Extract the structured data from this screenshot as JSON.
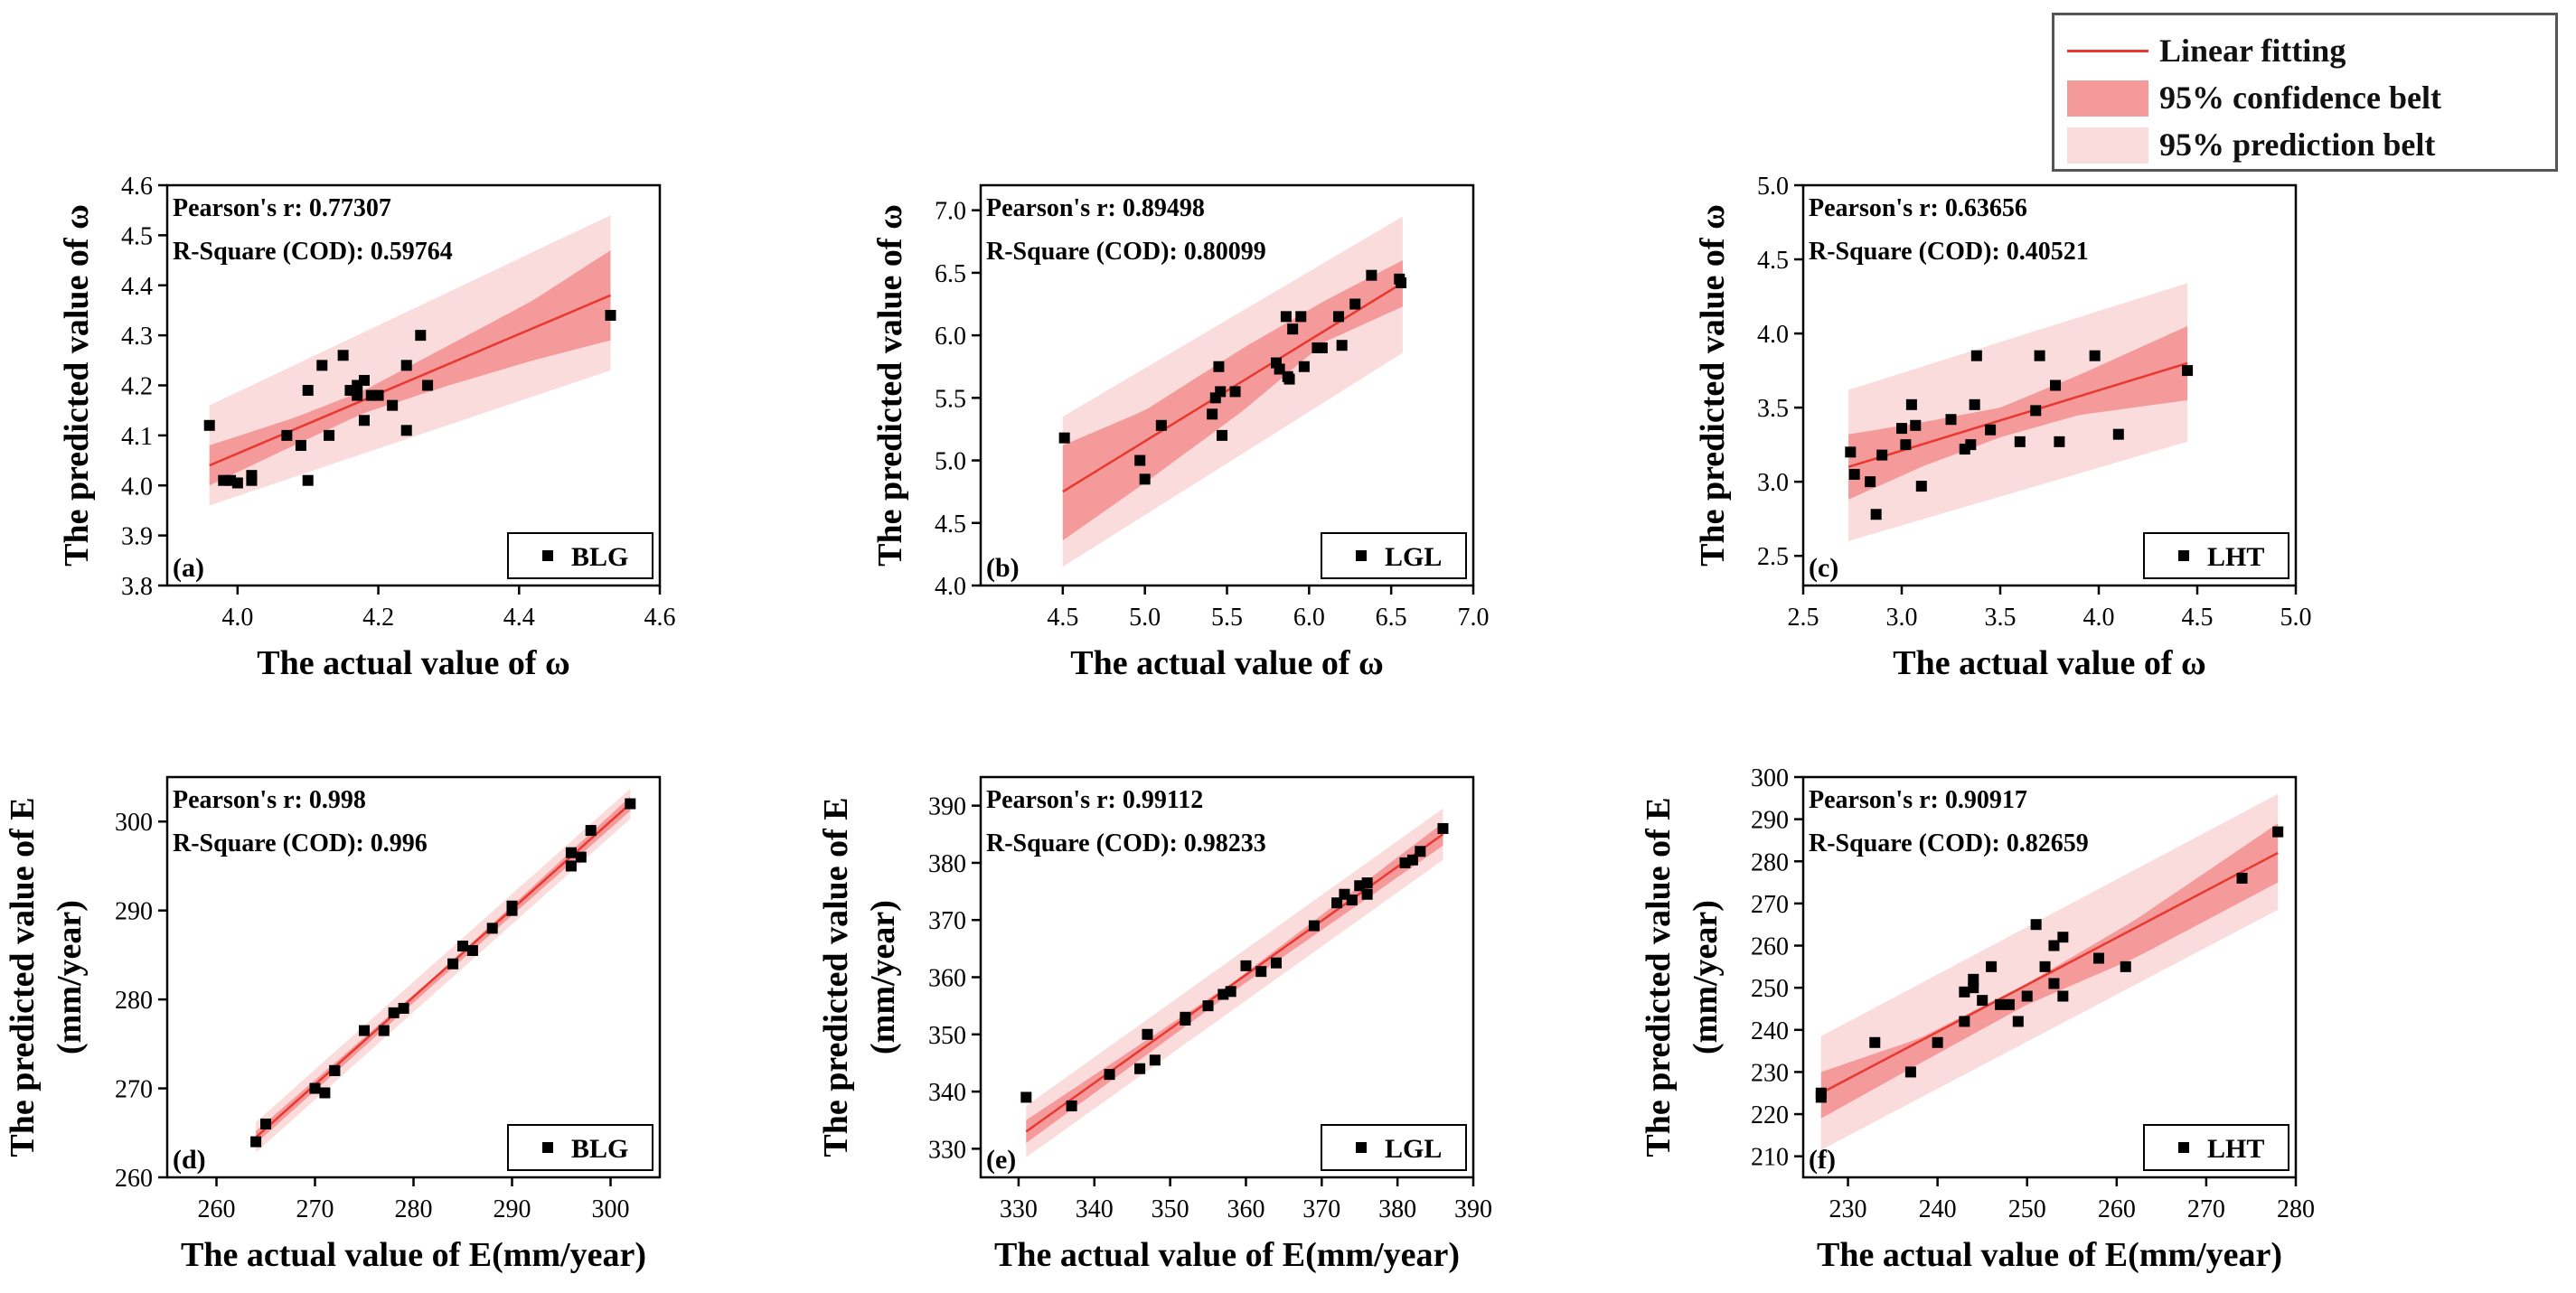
{
  "legend": {
    "items": [
      {
        "label": "Linear fitting",
        "kind": "line",
        "color": "#e8382f"
      },
      {
        "label": "95% confidence belt",
        "kind": "band",
        "color": "#f59a9a"
      },
      {
        "label": "95% prediction belt",
        "kind": "band",
        "color": "#fbdcdc"
      }
    ]
  },
  "colors": {
    "fit": "#e8382f",
    "conf": "#f59a9a",
    "pred": "#fbdcdc",
    "point": "#000000"
  },
  "chart_data": [
    {
      "type": "scatter",
      "panel": "(a)",
      "series_label": "BLG",
      "xlabel": "The actual value of ω",
      "ylabel": [
        "The predicted value of ω"
      ],
      "xlim": [
        3.9,
        4.6
      ],
      "ylim": [
        3.8,
        4.6
      ],
      "xticks": [
        "4.0",
        "4.2",
        "4.4",
        "4.6"
      ],
      "xtick_values": [
        4.0,
        4.2,
        4.4,
        4.6
      ],
      "yticks": [
        "3.8",
        "3.9",
        "4.0",
        "4.1",
        "4.2",
        "4.3",
        "4.4",
        "4.5",
        "4.6"
      ],
      "ytick_values": [
        3.8,
        3.9,
        4.0,
        4.1,
        4.2,
        4.3,
        4.4,
        4.5,
        4.6
      ],
      "stats": [
        "Pearson's r: 0.77307",
        "R-Square (COD): 0.59764"
      ],
      "fit": {
        "x": [
          3.96,
          4.53
        ],
        "y": [
          4.04,
          4.38
        ]
      },
      "conf_band": {
        "x": [
          3.96,
          4.08,
          4.18,
          4.3,
          4.42,
          4.53
        ],
        "upper": [
          4.08,
          4.135,
          4.19,
          4.28,
          4.37,
          4.47
        ],
        "lower": [
          4.0,
          4.08,
          4.145,
          4.2,
          4.25,
          4.29
        ]
      },
      "pred_band": {
        "x": [
          3.96,
          4.53
        ],
        "upper": [
          4.16,
          4.54
        ],
        "lower": [
          3.96,
          4.23
        ]
      },
      "points": [
        [
          3.96,
          4.12
        ],
        [
          3.98,
          4.01
        ],
        [
          3.99,
          4.01
        ],
        [
          4.0,
          4.005
        ],
        [
          4.02,
          4.01
        ],
        [
          4.02,
          4.02
        ],
        [
          4.07,
          4.1
        ],
        [
          4.09,
          4.08
        ],
        [
          4.1,
          4.19
        ],
        [
          4.1,
          4.01
        ],
        [
          4.12,
          4.24
        ],
        [
          4.13,
          4.1
        ],
        [
          4.15,
          4.26
        ],
        [
          4.16,
          4.19
        ],
        [
          4.17,
          4.2
        ],
        [
          4.17,
          4.18
        ],
        [
          4.18,
          4.21
        ],
        [
          4.18,
          4.13
        ],
        [
          4.19,
          4.18
        ],
        [
          4.2,
          4.18
        ],
        [
          4.22,
          4.16
        ],
        [
          4.24,
          4.24
        ],
        [
          4.24,
          4.11
        ],
        [
          4.26,
          4.3
        ],
        [
          4.27,
          4.2
        ],
        [
          4.53,
          4.34
        ]
      ]
    },
    {
      "type": "scatter",
      "panel": "(b)",
      "series_label": "LGL",
      "xlabel": "The actual value of ω",
      "ylabel": [
        "The predicted value of ω"
      ],
      "xlim": [
        4.0,
        7.0
      ],
      "ylim": [
        4.0,
        7.2
      ],
      "xticks": [
        "4.5",
        "5.0",
        "5.5",
        "6.0",
        "6.5",
        "7.0"
      ],
      "xtick_values": [
        4.5,
        5.0,
        5.5,
        6.0,
        6.5,
        7.0
      ],
      "yticks": [
        "4.0",
        "4.5",
        "5.0",
        "5.5",
        "6.0",
        "6.5",
        "7.0"
      ],
      "ytick_values": [
        4.0,
        4.5,
        5.0,
        5.5,
        6.0,
        6.5,
        7.0
      ],
      "stats": [
        "Pearson's r: 0.89498",
        "R-Square (COD): 0.80099"
      ],
      "fit": {
        "x": [
          4.5,
          6.57
        ],
        "y": [
          4.75,
          6.42
        ]
      },
      "conf_band": {
        "x": [
          4.5,
          5.0,
          5.6,
          6.1,
          6.57
        ],
        "upper": [
          5.12,
          5.4,
          5.9,
          6.28,
          6.6
        ],
        "lower": [
          4.36,
          4.82,
          5.4,
          5.95,
          6.23
        ]
      },
      "pred_band": {
        "x": [
          4.5,
          6.57
        ],
        "upper": [
          5.35,
          6.95
        ],
        "lower": [
          4.15,
          5.86
        ]
      },
      "points": [
        [
          4.51,
          5.18
        ],
        [
          4.97,
          5.0
        ],
        [
          5.0,
          4.85
        ],
        [
          5.1,
          5.28
        ],
        [
          5.41,
          5.37
        ],
        [
          5.43,
          5.5
        ],
        [
          5.45,
          5.75
        ],
        [
          5.46,
          5.55
        ],
        [
          5.47,
          5.2
        ],
        [
          5.55,
          5.55
        ],
        [
          5.8,
          5.78
        ],
        [
          5.82,
          5.73
        ],
        [
          5.86,
          6.15
        ],
        [
          5.87,
          5.67
        ],
        [
          5.88,
          5.65
        ],
        [
          5.9,
          6.05
        ],
        [
          5.95,
          6.15
        ],
        [
          5.97,
          5.75
        ],
        [
          6.05,
          5.9
        ],
        [
          6.08,
          5.9
        ],
        [
          6.18,
          6.15
        ],
        [
          6.2,
          5.92
        ],
        [
          6.28,
          6.25
        ],
        [
          6.38,
          6.48
        ],
        [
          6.55,
          6.45
        ],
        [
          6.56,
          6.42
        ]
      ]
    },
    {
      "type": "scatter",
      "panel": "(c)",
      "series_label": "LHT",
      "xlabel": "The actual value of ω",
      "ylabel": [
        "The predicted value of ω"
      ],
      "xlim": [
        2.5,
        5.0
      ],
      "ylim": [
        2.3,
        5.0
      ],
      "xticks": [
        "2.5",
        "3.0",
        "3.5",
        "4.0",
        "4.5",
        "5.0"
      ],
      "xtick_values": [
        2.5,
        3.0,
        3.5,
        4.0,
        4.5,
        5.0
      ],
      "yticks": [
        "2.5",
        "3.0",
        "3.5",
        "4.0",
        "4.5",
        "5.0"
      ],
      "ytick_values": [
        2.5,
        3.0,
        3.5,
        4.0,
        4.5,
        5.0
      ],
      "stats": [
        "Pearson's r: 0.63656",
        "R-Square (COD): 0.40521"
      ],
      "fit": {
        "x": [
          2.73,
          4.45
        ],
        "y": [
          3.1,
          3.8
        ]
      },
      "conf_band": {
        "x": [
          2.73,
          3.1,
          3.5,
          3.9,
          4.45
        ],
        "upper": [
          3.32,
          3.4,
          3.5,
          3.72,
          4.05
        ],
        "lower": [
          2.88,
          3.1,
          3.3,
          3.45,
          3.55
        ]
      },
      "pred_band": {
        "x": [
          2.73,
          4.45
        ],
        "upper": [
          3.62,
          4.34
        ],
        "lower": [
          2.6,
          3.27
        ]
      },
      "points": [
        [
          2.74,
          3.2
        ],
        [
          2.76,
          3.05
        ],
        [
          2.84,
          3.0
        ],
        [
          2.87,
          2.78
        ],
        [
          2.9,
          3.18
        ],
        [
          3.0,
          3.36
        ],
        [
          3.02,
          3.25
        ],
        [
          3.05,
          3.52
        ],
        [
          3.07,
          3.38
        ],
        [
          3.1,
          2.97
        ],
        [
          3.25,
          3.42
        ],
        [
          3.32,
          3.22
        ],
        [
          3.35,
          3.25
        ],
        [
          3.37,
          3.52
        ],
        [
          3.38,
          3.85
        ],
        [
          3.45,
          3.35
        ],
        [
          3.6,
          3.27
        ],
        [
          3.68,
          3.48
        ],
        [
          3.7,
          3.85
        ],
        [
          3.78,
          3.65
        ],
        [
          3.8,
          3.27
        ],
        [
          3.98,
          3.85
        ],
        [
          4.1,
          3.32
        ],
        [
          4.45,
          3.75
        ]
      ]
    },
    {
      "type": "scatter",
      "panel": "(d)",
      "series_label": "BLG",
      "xlabel": "The actual value of E(mm/year)",
      "ylabel": [
        "The predicted value of E",
        "(mm/year)"
      ],
      "xlim": [
        255,
        305
      ],
      "ylim": [
        260,
        305
      ],
      "xticks": [
        "260",
        "270",
        "280",
        "290",
        "300"
      ],
      "xtick_values": [
        260,
        270,
        280,
        290,
        300
      ],
      "yticks": [
        "260",
        "270",
        "280",
        "290",
        "300"
      ],
      "ytick_values": [
        260,
        270,
        280,
        290,
        300
      ],
      "stats": [
        "Pearson's r: 0.998",
        "R-Square (COD): 0.996"
      ],
      "fit": {
        "x": [
          264,
          302
        ],
        "y": [
          264.5,
          302
        ]
      },
      "conf_band": {
        "x": [
          264,
          283,
          302
        ],
        "upper": [
          265.2,
          283.4,
          302.8
        ],
        "lower": [
          263.8,
          282.6,
          301.2
        ]
      },
      "pred_band": {
        "x": [
          264,
          302
        ],
        "upper": [
          266.2,
          303.7
        ],
        "lower": [
          262.8,
          300.3
        ]
      },
      "points": [
        [
          264,
          264
        ],
        [
          265,
          266
        ],
        [
          270,
          270
        ],
        [
          271,
          269.5
        ],
        [
          272,
          272
        ],
        [
          272,
          272
        ],
        [
          275,
          276.5
        ],
        [
          277,
          276.5
        ],
        [
          278,
          278.5
        ],
        [
          279,
          279
        ],
        [
          284,
          284
        ],
        [
          285,
          286
        ],
        [
          286,
          285.5
        ],
        [
          288,
          288
        ],
        [
          290,
          290
        ],
        [
          290,
          290.5
        ],
        [
          296,
          295
        ],
        [
          296,
          296.5
        ],
        [
          297,
          296
        ],
        [
          298,
          299
        ],
        [
          302,
          302
        ]
      ]
    },
    {
      "type": "scatter",
      "panel": "(e)",
      "series_label": "LGL",
      "xlabel": "The actual value of E(mm/year)",
      "ylabel": [
        "The predicted value of E",
        "(mm/year)"
      ],
      "xlim": [
        325,
        390
      ],
      "ylim": [
        325,
        395
      ],
      "xticks": [
        "330",
        "340",
        "350",
        "360",
        "370",
        "380",
        "390"
      ],
      "xtick_values": [
        330,
        340,
        350,
        360,
        370,
        380,
        390
      ],
      "yticks": [
        "330",
        "340",
        "350",
        "360",
        "370",
        "380",
        "390"
      ],
      "ytick_values": [
        330,
        340,
        350,
        360,
        370,
        380,
        390
      ],
      "stats": [
        "Pearson's r: 0.99112",
        "R-Square (COD): 0.98233"
      ],
      "fit": {
        "x": [
          331,
          386
        ],
        "y": [
          333,
          385
        ]
      },
      "conf_band": {
        "x": [
          331,
          358,
          386
        ],
        "upper": [
          335,
          358.8,
          387
        ],
        "lower": [
          331,
          357.2,
          383
        ]
      },
      "pred_band": {
        "x": [
          331,
          386
        ],
        "upper": [
          337.5,
          389.5
        ],
        "lower": [
          328.5,
          380.5
        ]
      },
      "points": [
        [
          331,
          339
        ],
        [
          337,
          337.5
        ],
        [
          342,
          343
        ],
        [
          346,
          344
        ],
        [
          347,
          350
        ],
        [
          348,
          345.5
        ],
        [
          352,
          352.5
        ],
        [
          352,
          353
        ],
        [
          355,
          355
        ],
        [
          357,
          357
        ],
        [
          358,
          357.5
        ],
        [
          360,
          362
        ],
        [
          362,
          361
        ],
        [
          364,
          362.5
        ],
        [
          369,
          369
        ],
        [
          372,
          373
        ],
        [
          373,
          374.5
        ],
        [
          374,
          373.5
        ],
        [
          375,
          376
        ],
        [
          376,
          374.5
        ],
        [
          376,
          376.5
        ],
        [
          381,
          380
        ],
        [
          382,
          380.5
        ],
        [
          383,
          382
        ],
        [
          386,
          386
        ]
      ]
    },
    {
      "type": "scatter",
      "panel": "(f)",
      "series_label": "LHT",
      "xlabel": "The actual value of E(mm/year)",
      "ylabel": [
        "The predicted value of E",
        "(mm/year)"
      ],
      "xlim": [
        225,
        280
      ],
      "ylim": [
        205,
        300
      ],
      "xticks": [
        "230",
        "240",
        "250",
        "260",
        "270",
        "280"
      ],
      "xtick_values": [
        230,
        240,
        250,
        260,
        270,
        280
      ],
      "yticks": [
        "210",
        "220",
        "230",
        "240",
        "250",
        "260",
        "270",
        "280",
        "290",
        "300"
      ],
      "ytick_values": [
        210,
        220,
        230,
        240,
        250,
        260,
        270,
        280,
        290,
        300
      ],
      "stats": [
        "Pearson's r: 0.90917",
        "R-Square (COD): 0.82659"
      ],
      "fit": {
        "x": [
          227,
          278
        ],
        "y": [
          225,
          282
        ]
      },
      "conf_band": {
        "x": [
          227,
          238,
          250,
          262,
          278
        ],
        "upper": [
          230,
          238,
          251,
          266,
          289
        ],
        "lower": [
          219,
          232,
          246,
          257,
          275
        ]
      },
      "pred_band": {
        "x": [
          227,
          278
        ],
        "upper": [
          238.5,
          296
        ],
        "lower": [
          211.5,
          268.5
        ]
      },
      "points": [
        [
          227,
          224
        ],
        [
          227,
          225
        ],
        [
          233,
          237
        ],
        [
          237,
          230
        ],
        [
          240,
          237
        ],
        [
          243,
          249
        ],
        [
          243,
          242
        ],
        [
          244,
          252
        ],
        [
          244,
          250
        ],
        [
          245,
          247
        ],
        [
          246,
          255
        ],
        [
          247,
          246
        ],
        [
          248,
          246
        ],
        [
          249,
          242
        ],
        [
          250,
          248
        ],
        [
          251,
          265
        ],
        [
          252,
          255
        ],
        [
          253,
          260
        ],
        [
          253,
          251
        ],
        [
          254,
          248
        ],
        [
          254,
          262
        ],
        [
          258,
          257
        ],
        [
          261,
          255
        ],
        [
          274,
          276
        ],
        [
          278,
          287
        ]
      ]
    }
  ]
}
